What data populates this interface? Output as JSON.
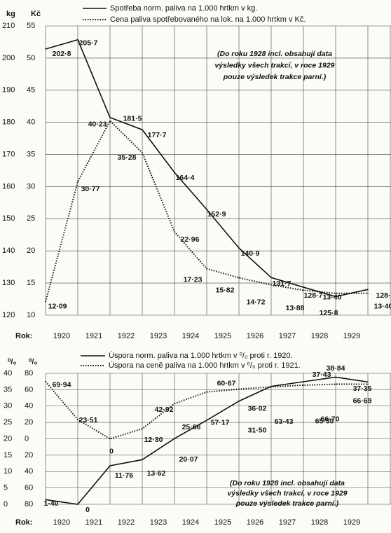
{
  "chart_data": [
    {
      "type": "line",
      "y_unit": "kg",
      "y2_unit": "Kč",
      "x_label": "Rok:",
      "categories": [
        "1920",
        "1921",
        "1922",
        "1923",
        "1924",
        "1925",
        "1926",
        "1927",
        "1928",
        "1929",
        null
      ],
      "ylim": [
        120,
        210
      ],
      "yticks": [
        120,
        130,
        140,
        150,
        160,
        170,
        180,
        190,
        200,
        210
      ],
      "y2lim": [
        10,
        55
      ],
      "y2ticks": [
        10,
        15,
        20,
        25,
        30,
        35,
        40,
        45,
        50,
        55
      ],
      "grid": true,
      "annotation": [
        "(Do roku 1928 incl. obsahují data",
        "výsledky všech trakcí, v roce 1929",
        "pouze výsledek trakce parní.)"
      ],
      "series": [
        {
          "name": "Spotřeba norm. paliva na 1.000 hrtkm v kg.",
          "color": "#111111",
          "style": "solid",
          "values": [
            202.8,
            205.7,
            181.5,
            177.7,
            164.4,
            152.9,
            140.9,
            131.7,
            128.7,
            125.8,
            128
          ],
          "value_labels": [
            "202·8",
            "205·7",
            "181·5",
            "177·7",
            "164·4",
            "152·9",
            "140·9",
            "131·7",
            "128·7",
            "125·8",
            "128·"
          ]
        },
        {
          "name": "Cena paliva spotřebovaného na lok. na 1.000 hrtkm v Kč.",
          "color": "#111111",
          "style": "dotted",
          "axis": "y2",
          "values": [
            12.09,
            30.77,
            40.23,
            35.28,
            22.96,
            17.23,
            15.82,
            14.72,
            13.88,
            13.4,
            13.4
          ],
          "value_labels": [
            "12·09",
            "30·77",
            "40·23",
            "35·28",
            "22·96",
            "17·23",
            "15·82",
            "14·72",
            "13·88",
            "13·40",
            "13·40"
          ]
        }
      ]
    },
    {
      "type": "line",
      "y_unit": "⁰/₀",
      "y2_unit": "⁰/₀",
      "x_label": "Rok:",
      "categories": [
        "1920",
        "1921",
        "1922",
        "1923",
        "1924",
        "1925",
        "1926",
        "1927",
        "1928",
        "1929",
        null
      ],
      "ylim": [
        0,
        40
      ],
      "yticks": [
        0,
        5,
        10,
        15,
        20,
        25,
        30,
        35,
        40
      ],
      "y2lim": [
        -80,
        80
      ],
      "y2ticks": [
        {
          "value": -80,
          "label": "80"
        },
        {
          "value": -60,
          "label": "60"
        },
        {
          "value": -40,
          "label": "40"
        },
        {
          "value": -20,
          "label": "20"
        },
        0,
        20,
        40,
        60,
        80
      ],
      "grid": true,
      "annotation": [
        "(Do roku 1928 incl. obsahují data",
        "výsledky všech trakcí, v roce 1929",
        "pouze výsledek trakce parní.)"
      ],
      "series": [
        {
          "name": "Úspora norm. paliva na 1.000 hrtkm v ⁰/₀ proti r. 1920.",
          "color": "#111111",
          "style": "solid",
          "values": [
            1.4,
            0,
            11.76,
            13.62,
            20.07,
            25.66,
            31.5,
            36.02,
            37.43,
            38.84,
            37.35
          ],
          "value_labels": [
            "1·40",
            "0",
            "11·76",
            "13·62",
            "20·07",
            "25·66",
            "31·50",
            "36·02",
            "37·43",
            "38·84",
            "37·35"
          ]
        },
        {
          "name": "Úspora na ceně paliva na 1.000 hrtkm v ⁰/₀ proti r. 1921.",
          "color": "#111111",
          "style": "dotted",
          "axis": "y2",
          "values": [
            69.94,
            23.51,
            0,
            12.3,
            42.92,
            57.17,
            60.67,
            63.43,
            65.5,
            66.7,
            66.69
          ],
          "value_labels": [
            "69·94",
            "23·51",
            "0",
            "12·30",
            "42·92",
            "57·17",
            "60·67",
            "63·43",
            "65·50",
            "66·70",
            "66·69"
          ]
        }
      ]
    }
  ]
}
